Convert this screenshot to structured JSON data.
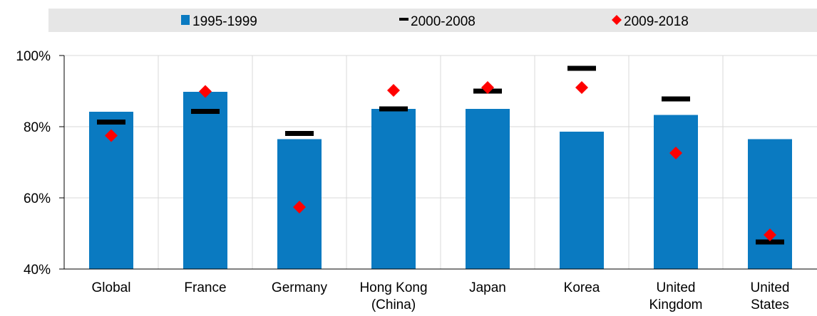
{
  "chart_data": {
    "type": "bar",
    "title": "",
    "xlabel": "",
    "ylabel": "",
    "ylim": [
      40,
      100
    ],
    "yticks": [
      "40%",
      "60%",
      "80%",
      "100%"
    ],
    "ytick_values": [
      40,
      60,
      80,
      100
    ],
    "grid": true,
    "legend_position": "top",
    "categories": [
      [
        "Global"
      ],
      [
        "France"
      ],
      [
        "Germany"
      ],
      [
        "Hong Kong",
        "(China)"
      ],
      [
        "Japan"
      ],
      [
        "Korea"
      ],
      [
        "United",
        "Kingdom"
      ],
      [
        "United",
        "States"
      ]
    ],
    "series": [
      {
        "name": "1995-1999",
        "mark": "bar",
        "color": "#0a7ac1",
        "values": [
          84.2,
          89.8,
          76.5,
          85.0,
          85.0,
          78.6,
          83.3,
          76.5
        ]
      },
      {
        "name": "2000-2008",
        "mark": "dash",
        "color": "#000000",
        "values": [
          81.3,
          84.3,
          78.1,
          85.0,
          90.0,
          96.4,
          87.8,
          47.6
        ]
      },
      {
        "name": "2009-2018",
        "mark": "diamond",
        "color": "#ff0000",
        "values": [
          77.5,
          89.9,
          57.4,
          90.2,
          91.0,
          91.0,
          72.6,
          49.6
        ]
      }
    ]
  }
}
